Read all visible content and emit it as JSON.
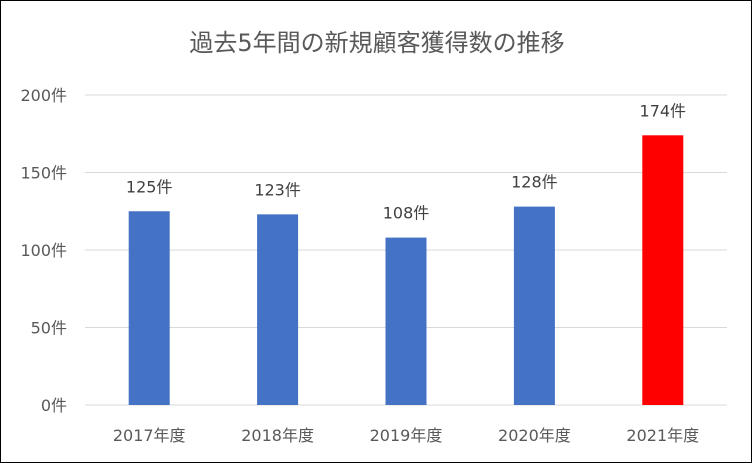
{
  "chart_data": {
    "type": "bar",
    "title": "過去5年間の新規顧客獲得数の推移",
    "categories": [
      "2017年度",
      "2018年度",
      "2019年度",
      "2020年度",
      "2021年度"
    ],
    "values": [
      125,
      123,
      108,
      128,
      174
    ],
    "data_labels": [
      "125件",
      "123件",
      "108件",
      "128件",
      "174件"
    ],
    "y_ticks": [
      {
        "value": 0,
        "label": "0件"
      },
      {
        "value": 50,
        "label": "50件"
      },
      {
        "value": 100,
        "label": "100件"
      },
      {
        "value": 150,
        "label": "150件"
      },
      {
        "value": 200,
        "label": "200件"
      }
    ],
    "ylim": [
      0,
      200
    ],
    "grid": true,
    "legend": "none",
    "colors": {
      "bar_default": "#4472c4",
      "bar_highlight": "#ff0000",
      "highlight_category": "2021年度"
    }
  }
}
